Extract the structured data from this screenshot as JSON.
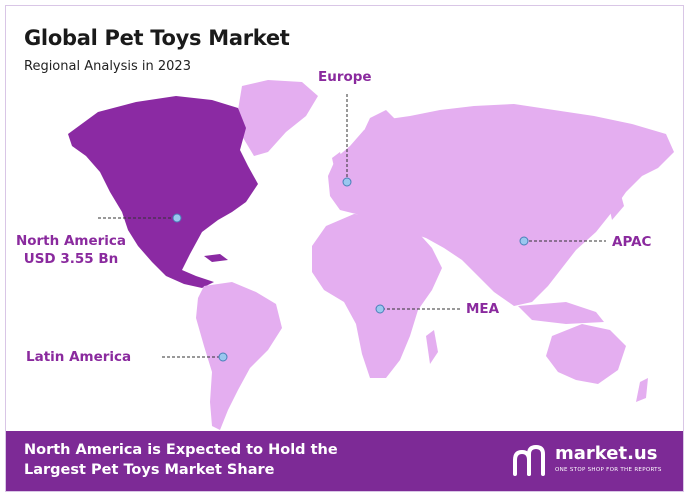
{
  "title": "Global Pet Toys Market",
  "subtitle": "Regional Analysis in 2023",
  "regions": [
    {
      "name": "North America",
      "value": "USD 3.55 Bn",
      "highlighted": true
    },
    {
      "name": "Europe",
      "highlighted": false
    },
    {
      "name": "APAC",
      "highlighted": false
    },
    {
      "name": "MEA",
      "highlighted": false
    },
    {
      "name": "Latin America",
      "highlighted": false
    }
  ],
  "footer": {
    "headline_line1": "North America is Expected to Hold the",
    "headline_line2": "Largest Pet Toys  Market Share"
  },
  "brand": {
    "name": "market.us",
    "tagline": "ONE STOP SHOP FOR THE REPORTS"
  },
  "colors": {
    "highlight_region": "#8b2aa3",
    "other_regions": "#e4aef0",
    "label": "#8a2a9e",
    "footer_bg": "#7d2a96",
    "marker": "#9ac7ef"
  }
}
